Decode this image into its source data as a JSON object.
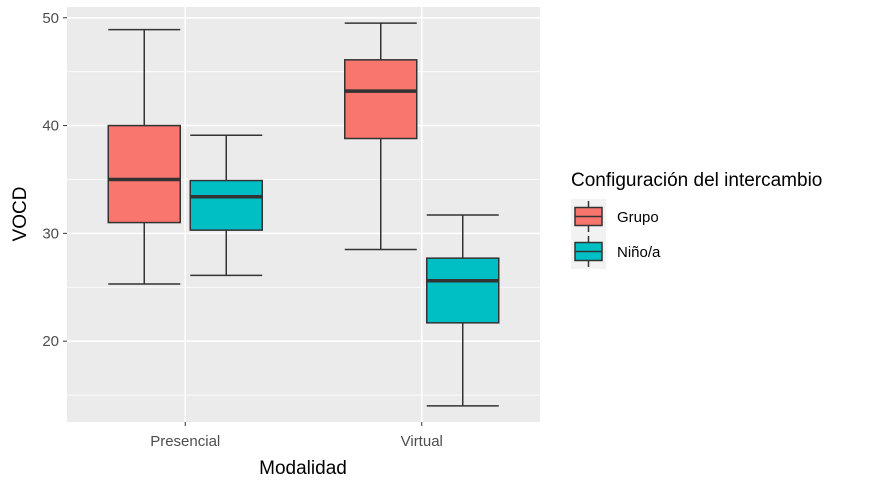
{
  "chart_data": {
    "type": "boxplot",
    "title": "",
    "xlabel": "Modalidad",
    "ylabel": "VOCD",
    "categories": [
      "Presencial",
      "Virtual"
    ],
    "ylim": [
      12.5,
      51.0
    ],
    "y_ticks": [
      20,
      30,
      40,
      50
    ],
    "grid": true,
    "legend_position": "right",
    "legend_title": "Configuración del intercambio",
    "series": [
      {
        "name": "Grupo",
        "color": "#F8766D",
        "boxes": [
          {
            "category": "Presencial",
            "whisker_low": 25.3,
            "q1": 31.0,
            "median": 35.0,
            "q3": 40.0,
            "whisker_high": 48.9
          },
          {
            "category": "Virtual",
            "whisker_low": 28.5,
            "q1": 38.8,
            "median": 43.2,
            "q3": 46.1,
            "whisker_high": 49.5
          }
        ]
      },
      {
        "name": "Niño/a",
        "color": "#00BFC4",
        "boxes": [
          {
            "category": "Presencial",
            "whisker_low": 26.1,
            "q1": 30.3,
            "median": 33.4,
            "q3": 34.9,
            "whisker_high": 39.1
          },
          {
            "category": "Virtual",
            "whisker_low": 14.0,
            "q1": 21.7,
            "median": 25.6,
            "q3": 27.7,
            "whisker_high": 31.7
          }
        ]
      }
    ]
  }
}
